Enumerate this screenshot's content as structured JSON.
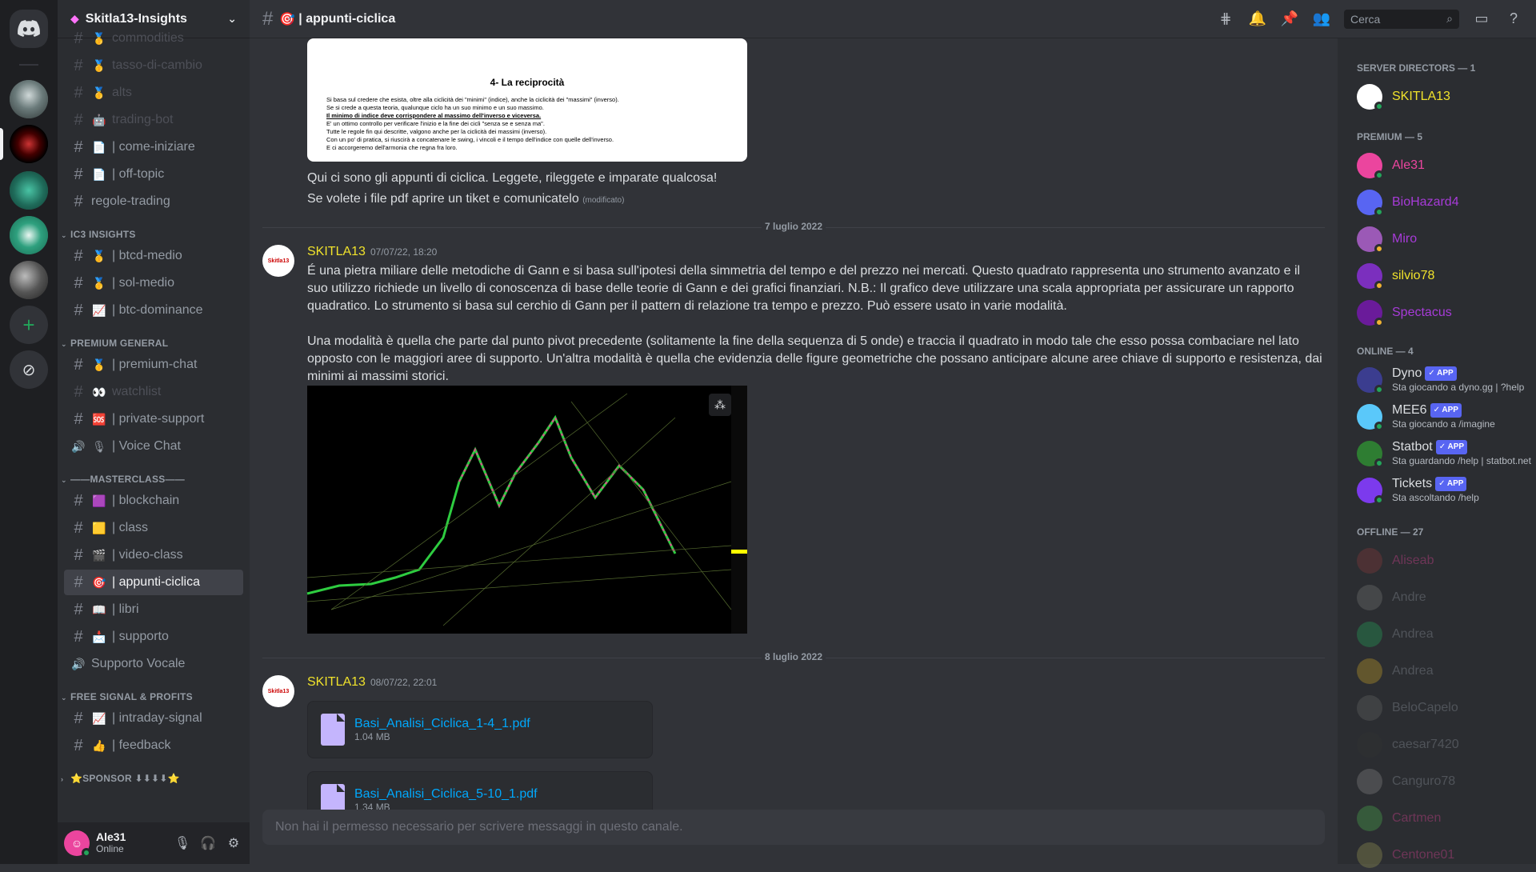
{
  "server": {
    "name": "Skitla13-Insights"
  },
  "channel_list": {
    "items": [
      {
        "type": "channel",
        "emoji": "🥇",
        "label": "commodities",
        "muted": true
      },
      {
        "type": "channel",
        "emoji": "🥇",
        "label": "tasso-di-cambio",
        "muted": true
      },
      {
        "type": "channel",
        "emoji": "🥇",
        "label": "alts",
        "muted": true
      },
      {
        "type": "channel",
        "emoji": "🤖",
        "label": "trading-bot",
        "muted": true
      },
      {
        "type": "channel",
        "emoji": "📄",
        "label": "| come-iniziare",
        "muted": false
      },
      {
        "type": "channel",
        "emoji": "📄",
        "label": "| off-topic",
        "muted": false
      },
      {
        "type": "channel",
        "emoji": "",
        "label": "regole-trading",
        "muted": false
      },
      {
        "type": "category",
        "label": "IC3 INSIGHTS"
      },
      {
        "type": "channel",
        "emoji": "🥇",
        "label": "| btcd-medio",
        "muted": false
      },
      {
        "type": "channel",
        "emoji": "🥇",
        "label": "| sol-medio",
        "muted": false
      },
      {
        "type": "channel",
        "emoji": "📈",
        "label": "| btc-dominance",
        "muted": false
      },
      {
        "type": "category",
        "label": "PREMIUM GENERAL"
      },
      {
        "type": "channel",
        "emoji": "🥇",
        "label": "| premium-chat",
        "muted": false
      },
      {
        "type": "channel",
        "emoji": "👀",
        "label": "watchlist",
        "muted": true
      },
      {
        "type": "channel",
        "emoji": "🆘",
        "label": "| private-support",
        "muted": false
      },
      {
        "type": "voice",
        "emoji": "🎙",
        "label": "| Voice Chat",
        "muted": false
      },
      {
        "type": "category",
        "label": "——MASTERCLASS——"
      },
      {
        "type": "channel",
        "emoji": "🟪",
        "label": "| blockchain",
        "muted": false
      },
      {
        "type": "channel",
        "emoji": "🟨",
        "label": "| class",
        "muted": false
      },
      {
        "type": "channel",
        "emoji": "🎬",
        "label": "| video-class",
        "muted": false
      },
      {
        "type": "channel",
        "emoji": "🎯",
        "label": "| appunti-ciclica",
        "muted": false,
        "active": true
      },
      {
        "type": "channel",
        "emoji": "📖",
        "label": "| libri",
        "muted": false
      },
      {
        "type": "channel",
        "emoji": "📩",
        "label": "| supporto",
        "muted": false
      },
      {
        "type": "voice",
        "emoji": "",
        "label": "Supporto Vocale",
        "muted": false
      },
      {
        "type": "category",
        "label": "FREE SIGNAL & PROFITS"
      },
      {
        "type": "channel",
        "emoji": "📈",
        "label": "| intraday-signal",
        "muted": false
      },
      {
        "type": "channel",
        "emoji": "👍",
        "label": "| feedback",
        "muted": false
      },
      {
        "type": "category",
        "label": "⭐SPONSOR ⬇⬇⬇⬇⭐",
        "collapsed": true
      }
    ]
  },
  "user_panel": {
    "name": "Ale31",
    "status": "Online"
  },
  "topbar": {
    "channel_emoji": "🎯",
    "channel_title": "| appunti-ciclica",
    "search_placeholder": "Cerca"
  },
  "messages": {
    "pdf_preview": {
      "heading": "4- La reciprocità",
      "lines": [
        "Si basa sul credere che esista, oltre alla ciclicità dei \"minimi\" (indice), anche la ciclicità dei \"massimi\" (inverso).",
        "Se si crede a questa teoria, qualunque ciclo ha un suo minimo e un suo massimo.",
        "Il minimo di indice deve corrispondere al massimo dell'inverso e viceversa.",
        "E' un ottimo controllo per verificare l'inizio e la fine dei cicli \"senza se e senza ma\".",
        "Tutte le regole fin qui descritte, valgono anche per la ciclicità dei massimi (inverso).",
        "Con un po' di pratica, si riuscirà a concatenare le swing, i vincoli e il tempo dell'indice con quelle dell'inverso.",
        "E ci accorgeremo dell'armonia che regna fra loro."
      ]
    },
    "intro_line1": "Qui ci sono gli appunti di ciclica. Leggete, rileggete e imparate qualcosa!",
    "intro_line2": "Se volete i file pdf aprire un tiket e comunicatelo",
    "edited_label": "(modificato)",
    "divider1": "7 luglio 2022",
    "msg1": {
      "author": "SKITLA13",
      "timestamp": "07/07/22, 18:20",
      "para1": "É una pietra miliare delle metodiche di Gann e si basa sull'ipotesi della simmetria del tempo e del prezzo nei mercati. Questo quadrato rappresenta uno strumento avanzato e il suo utilizzo richiede un livello di conoscenza di base delle teorie di Gann e dei grafici finanziari. N.B.: Il grafico deve utilizzare una scala appropriata per assicurare un rapporto quadratico. Lo strumento si basa sul cerchio di Gann per il pattern di relazione tra tempo e prezzo. Può essere usato in varie modalità.",
      "para2": "Una modalità è quella che parte dal punto pivot precedente (solitamente la fine della sequenza di 5 onde) e traccia il quadrato in modo tale che esso possa combaciare nel lato opposto con le maggiori aree di supporto. Un'altra modalità è quella che evidenzia delle figure geometriche che possano anticipare alcune aree chiave di supporto e resistenza, dai minimi ai massimi storici."
    },
    "divider2": "8 luglio 2022",
    "msg2": {
      "author": "SKITLA13",
      "timestamp": "08/07/22, 22:01",
      "attachments": [
        {
          "name": "Basi_Analisi_Ciclica_1-4_1.pdf",
          "size": "1.04 MB"
        },
        {
          "name": "Basi_Analisi_Ciclica_5-10_1.pdf",
          "size": "1.34 MB"
        }
      ]
    },
    "composer_placeholder": "Non hai il permesso necessario per scrivere messaggi in questo canale."
  },
  "members": {
    "directors_header": "SERVER DIRECTORS — 1",
    "directors": [
      {
        "name": "SKITLA13",
        "color": "#f0e22b"
      }
    ],
    "premium_header": "PREMIUM — 5",
    "premium": [
      {
        "name": "Ale31",
        "color": "#eb459e",
        "av": "#eb459e"
      },
      {
        "name": "BioHazard4",
        "color": "#a73bd8",
        "av": "#5865f2"
      },
      {
        "name": "Miro",
        "color": "#a73bd8",
        "av": "#9b59b6"
      },
      {
        "name": "silvio78",
        "color": "#f0e22b",
        "av": "#7b2fbe"
      },
      {
        "name": "Spectacus",
        "color": "#a73bd8",
        "av": "#6a1b9a"
      }
    ],
    "online_header": "ONLINE — 4",
    "online": [
      {
        "name": "Dyno",
        "activity": "Sta giocando a dyno.gg | ?help",
        "av": "#3b3d8f"
      },
      {
        "name": "MEE6",
        "activity": "Sta giocando a /imagine",
        "av": "#5ac8fa"
      },
      {
        "name": "Statbot",
        "activity": "Sta guardando /help | statbot.net",
        "av": "#2e7d32"
      },
      {
        "name": "Tickets",
        "activity": "Sta ascoltando /help",
        "av": "#7c3aed"
      }
    ],
    "app_badge": "✓ APP",
    "offline_header": "OFFLINE — 27",
    "offline": [
      {
        "name": "Aliseab",
        "color": "#eb459e",
        "av": "#8b3a3a"
      },
      {
        "name": "Andre",
        "color": "#949ba4",
        "av": "#777"
      },
      {
        "name": "Andrea",
        "color": "#949ba4",
        "av": "#23a55a"
      },
      {
        "name": "Andrea",
        "color": "#949ba4",
        "av": "#c9a227"
      },
      {
        "name": "BeloCapelo",
        "color": "#949ba4",
        "av": "#666"
      },
      {
        "name": "caesar7420",
        "color": "#949ba4",
        "av": "#333"
      },
      {
        "name": "Canguro78",
        "color": "#949ba4",
        "av": "#888"
      },
      {
        "name": "Cartmen",
        "color": "#eb459e",
        "av": "#4caf50"
      },
      {
        "name": "Centone01",
        "color": "#eb459e",
        "av": "#995"
      }
    ]
  }
}
